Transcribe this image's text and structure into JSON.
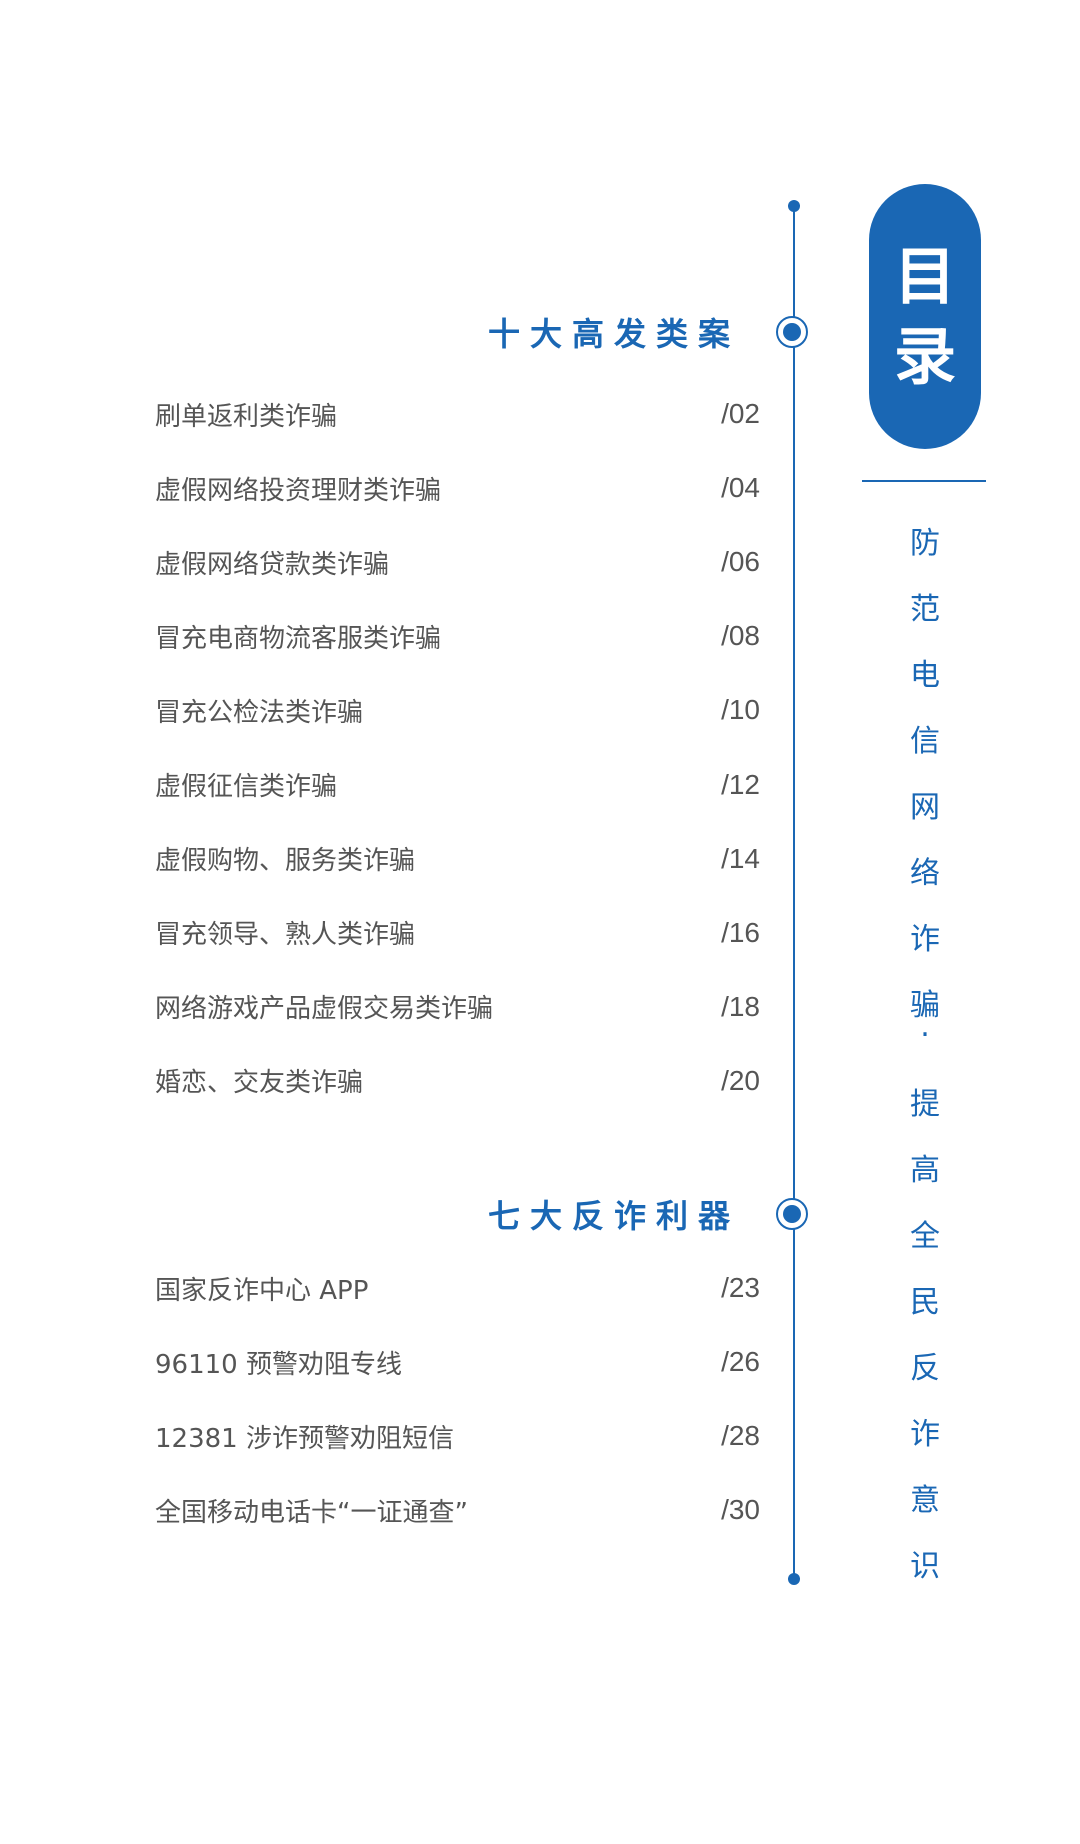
{
  "title_badge": [
    "目",
    "录"
  ],
  "slogan_chars": [
    "防",
    "范",
    "电",
    "信",
    "网",
    "络",
    "诈",
    "骗",
    "·",
    "提",
    "高",
    "全",
    "民",
    "反",
    "诈",
    "意",
    "识"
  ],
  "sections": [
    {
      "heading": "十大高发类案",
      "items": [
        {
          "label": "刷单返利类诈骗",
          "page": "/02"
        },
        {
          "label": "虚假网络投资理财类诈骗",
          "page": "/04"
        },
        {
          "label": "虚假网络贷款类诈骗",
          "page": "/06"
        },
        {
          "label": "冒充电商物流客服类诈骗",
          "page": "/08"
        },
        {
          "label": "冒充公检法类诈骗",
          "page": "/10"
        },
        {
          "label": "虚假征信类诈骗",
          "page": "/12"
        },
        {
          "label": "虚假购物、服务类诈骗",
          "page": "/14"
        },
        {
          "label": "冒充领导、熟人类诈骗",
          "page": "/16"
        },
        {
          "label": "网络游戏产品虚假交易类诈骗",
          "page": "/18"
        },
        {
          "label": "婚恋、交友类诈骗",
          "page": "/20"
        }
      ]
    },
    {
      "heading": "七大反诈利器",
      "items": [
        {
          "label": "国家反诈中心 APP",
          "page": "/23"
        },
        {
          "label": "96110 预警劝阻专线",
          "page": "/26"
        },
        {
          "label": "12381 涉诈预警劝阻短信",
          "page": "/28"
        },
        {
          "label": "全国移动电话卡“一证通查”",
          "page": "/30"
        }
      ]
    }
  ],
  "colors": {
    "accent": "#1a67b4",
    "text": "#555555"
  }
}
